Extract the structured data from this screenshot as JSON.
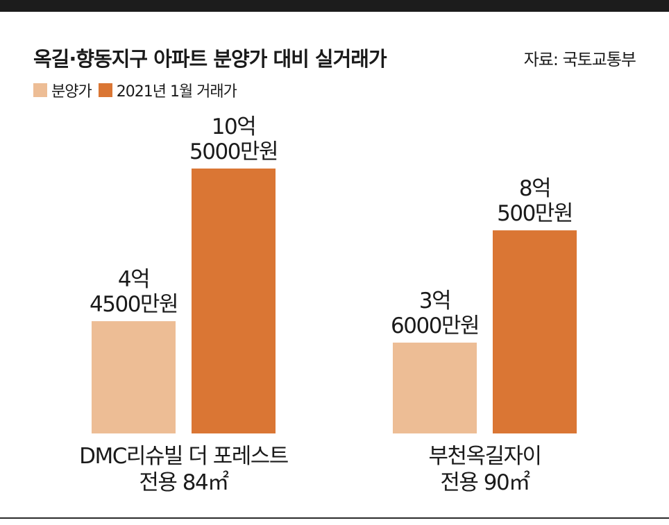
{
  "title": "옥길·향동지구 아파트 분양가 대비 실거래가",
  "source": "자료: 국토교통부",
  "colors": {
    "분양가": "#EDBD95",
    "2021년 1월 거래가": "#DA7634",
    "top_bar": "#1c1c1c"
  },
  "chart_data": {
    "type": "bar",
    "unit": "만원",
    "categories": [
      [
        "DMC리슈빌 더 포레스트",
        "전용 84㎡"
      ],
      [
        "부천옥길자이",
        "전용 90㎡"
      ]
    ],
    "series": [
      {
        "name": "분양가",
        "values": [
          44500,
          36000
        ],
        "labels": [
          [
            "4억",
            "4500만원"
          ],
          [
            "3억",
            "6000만원"
          ]
        ]
      },
      {
        "name": "2021년 1월 거래가",
        "values": [
          105000,
          80500
        ],
        "labels": [
          [
            "10억",
            "5000만원"
          ],
          [
            "8억",
            "500만원"
          ]
        ]
      }
    ],
    "ylim": [
      0,
      115000
    ],
    "grid": false,
    "legend": "top-left",
    "xlabel": "",
    "ylabel": ""
  }
}
